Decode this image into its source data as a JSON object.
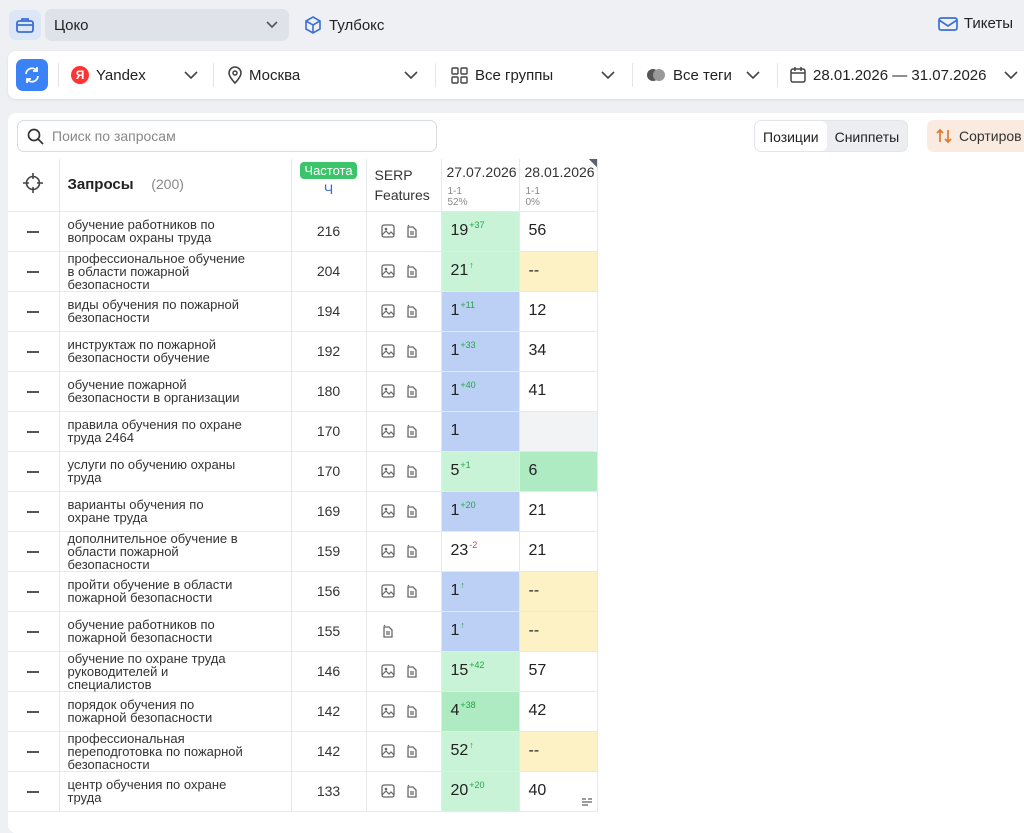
{
  "topbar": {
    "project": "Цоко",
    "toolbox": "Тулбокс",
    "tickets": "Тикеты"
  },
  "filters": {
    "engine": "Yandex",
    "region": "Москва",
    "groups": "Все группы",
    "tags": "Все теги",
    "dates": "28.01.2026 — 31.07.2026"
  },
  "toolbar": {
    "search_placeholder": "Поиск по запросам",
    "tab_positions": "Позиции",
    "tab_snippets": "Сниппеты",
    "sort": "Сортиров"
  },
  "table": {
    "h_queries": "Запросы",
    "h_count": "(200)",
    "h_freq": "Частота",
    "h_freq_sub": "Ч",
    "h_serp1": "SERP",
    "h_serp2": "Features",
    "date1": "27.07.2026",
    "date1_range": "1-1",
    "date1_pct": "52%",
    "date2": "28.01.2026",
    "date2_range": "1-1",
    "date2_pct": "0%",
    "rows": [
      {
        "q": "обучение работников по вопросам охраны труда",
        "f": "216",
        "img": true,
        "p1": "19",
        "d1": "+37",
        "c1": "g1",
        "p2": "56",
        "c2": "wh",
        "corner": true
      },
      {
        "q": "профессиональное обучение в области пожарной безопасности",
        "f": "204",
        "img": true,
        "p1": "21",
        "d1": "↑",
        "c1": "g1",
        "p2": "--",
        "c2": "yl",
        "corner": true
      },
      {
        "q": "виды обучения по пожарной безопасности",
        "f": "194",
        "img": true,
        "p1": "1",
        "d1": "+11",
        "c1": "bl",
        "p2": "12",
        "c2": "wh",
        "corner": true,
        "snip": true
      },
      {
        "q": "инструктаж по пожарной безопасности обучение",
        "f": "192",
        "img": true,
        "p1": "1",
        "d1": "+33",
        "c1": "bl",
        "p2": "34",
        "c2": "wh",
        "corner": true,
        "snip": true
      },
      {
        "q": "обучение пожарной безопасности в организации",
        "f": "180",
        "img": true,
        "p1": "1",
        "d1": "+40",
        "c1": "bl",
        "p2": "41",
        "c2": "wh",
        "corner": true
      },
      {
        "q": "правила обучения по охране труда 2464",
        "f": "170",
        "img": true,
        "p1": "1",
        "d1": "",
        "c1": "bl",
        "p2": "",
        "c2": "gr"
      },
      {
        "q": "услуги по обучению охраны труда",
        "f": "170",
        "img": true,
        "p1": "5",
        "d1": "+1",
        "c1": "g1",
        "p2": "6",
        "c2": "g2"
      },
      {
        "q": "варианты обучения по охране труда",
        "f": "169",
        "img": true,
        "p1": "1",
        "d1": "+20",
        "c1": "bl",
        "p2": "21",
        "c2": "wh",
        "corner": true
      },
      {
        "q": "дополнительное обучение в области пожарной безопасности",
        "f": "159",
        "img": true,
        "p1": "23",
        "d1": "-2",
        "c1": "wh",
        "p2": "21",
        "c2": "wh",
        "neg": true
      },
      {
        "q": "пройти обучение в области пожарной безопасности",
        "f": "156",
        "img": true,
        "p1": "1",
        "d1": "↑",
        "c1": "bl",
        "p2": "--",
        "c2": "yl",
        "corner": true
      },
      {
        "q": "обучение работников по пожарной безопасности",
        "f": "155",
        "img": false,
        "p1": "1",
        "d1": "↑",
        "c1": "bl",
        "p2": "--",
        "c2": "yl",
        "corner": true
      },
      {
        "q": "обучение по охране труда руководителей и специалистов",
        "f": "146",
        "img": true,
        "p1": "15",
        "d1": "+42",
        "c1": "g1",
        "p2": "57",
        "c2": "wh",
        "corner": true
      },
      {
        "q": "порядок обучения по пожарной безопасности",
        "f": "142",
        "img": true,
        "p1": "4",
        "d1": "+38",
        "c1": "g2",
        "p2": "42",
        "c2": "wh",
        "corner": true
      },
      {
        "q": "профессиональная переподготовка по пожарной безопасности",
        "f": "142",
        "img": true,
        "p1": "52",
        "d1": "↑",
        "c1": "g1",
        "p2": "--",
        "c2": "yl",
        "corner": true
      },
      {
        "q": "центр обучения по охране труда",
        "f": "133",
        "img": true,
        "p1": "20",
        "d1": "+20",
        "c1": "g1",
        "p2": "40",
        "c2": "wh"
      }
    ]
  },
  "colors": {
    "accent": "#3b82f6",
    "freq_badge": "#22c55e"
  }
}
